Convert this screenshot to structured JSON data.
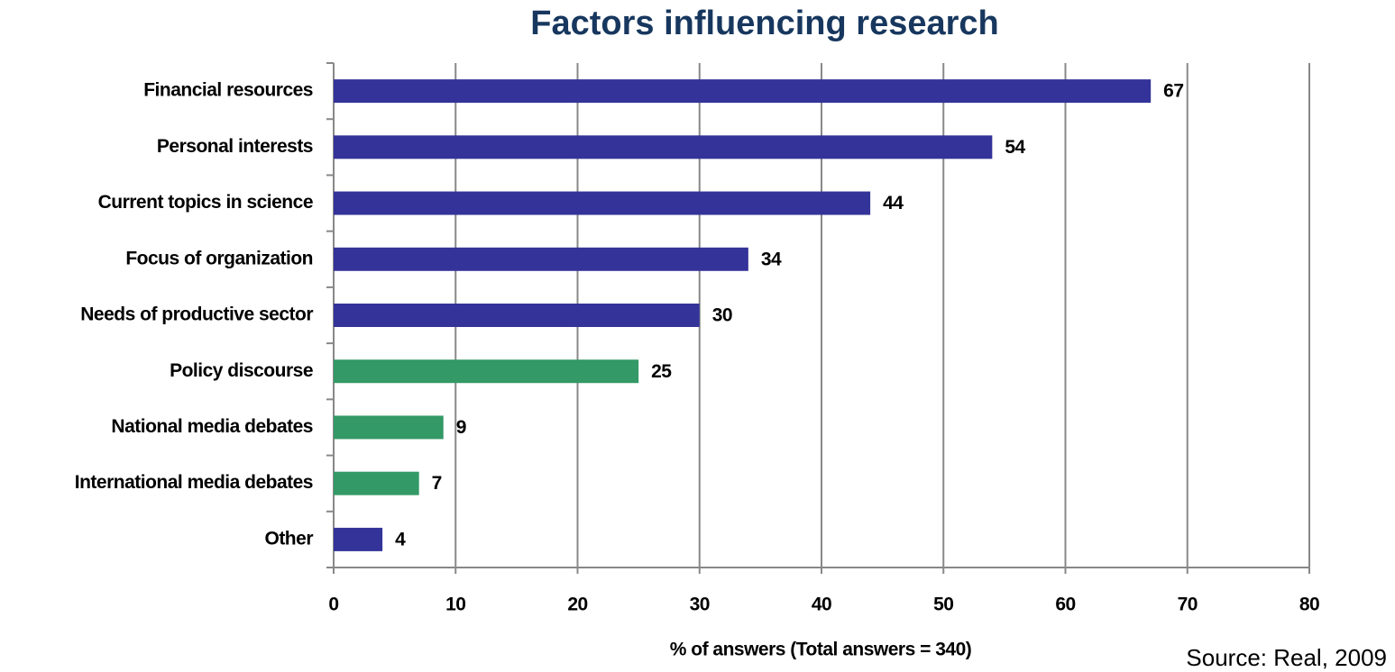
{
  "chart_data": {
    "type": "barh",
    "title": "Factors influencing research",
    "xlabel": "% of answers (Total answers = 340)",
    "source": "Source: Real, 2009",
    "categories": [
      "Financial resources",
      "Personal interests",
      "Current topics in science",
      "Focus of organization",
      "Needs of productive sector",
      "Policy discourse",
      "National media debates",
      "International media debates",
      "Other"
    ],
    "values": [
      67,
      54,
      44,
      34,
      30,
      25,
      9,
      7,
      4
    ],
    "colors": [
      "#333399",
      "#333399",
      "#333399",
      "#333399",
      "#333399",
      "#339966",
      "#339966",
      "#339966",
      "#333399"
    ],
    "xlim": [
      0,
      80
    ],
    "xticks": [
      0,
      10,
      20,
      30,
      40,
      50,
      60,
      70,
      80
    ],
    "grid": true
  }
}
